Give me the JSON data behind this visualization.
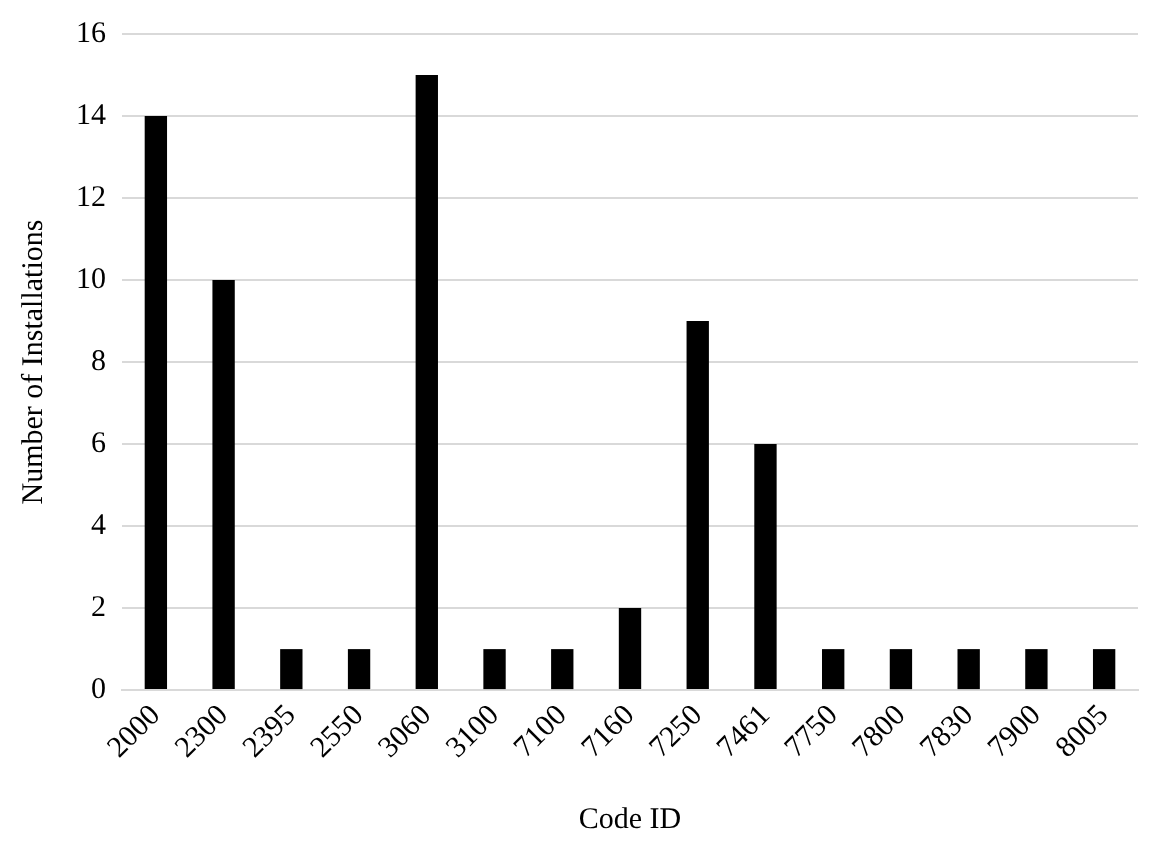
{
  "chart_data": {
    "type": "bar",
    "xlabel": "Code ID",
    "ylabel": "Number of Installations",
    "categories": [
      "2000",
      "2300",
      "2395",
      "2550",
      "3060",
      "3100",
      "7100",
      "7160",
      "7250",
      "7461",
      "7750",
      "7800",
      "7830",
      "7900",
      "8005"
    ],
    "values": [
      14,
      10,
      1,
      1,
      15,
      1,
      1,
      2,
      9,
      6,
      1,
      1,
      1,
      1,
      1
    ],
    "color": "#000000",
    "ylim": [
      0,
      16
    ],
    "yticks": [
      0,
      2,
      4,
      6,
      8,
      10,
      12,
      14,
      16
    ],
    "grid": "y"
  }
}
